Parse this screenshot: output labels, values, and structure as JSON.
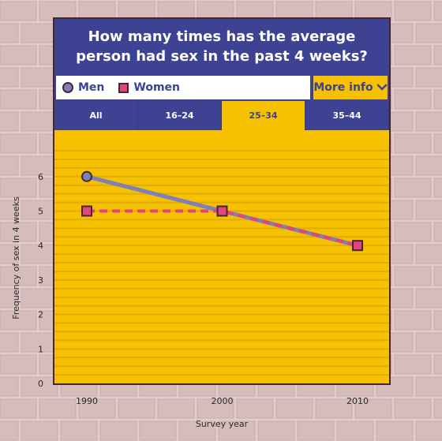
{
  "title": "How many times has the average person had sex in the past 4 weeks?",
  "legend": {
    "men": "Men",
    "women": "Women"
  },
  "more_info_label": "More info",
  "tabs": [
    {
      "label": "All",
      "active": false
    },
    {
      "label": "16–24",
      "active": false
    },
    {
      "label": "25–34",
      "active": true
    },
    {
      "label": "35–44",
      "active": false
    }
  ],
  "colors": {
    "panel": "#f6c100",
    "header": "#3d4293",
    "men": "#7e80b8",
    "women": "#e0457b",
    "outline": "#4a2430",
    "gridline": "#e1ac00"
  },
  "chart_data": {
    "type": "line",
    "title": "How many times has the average person had sex in the past 4 weeks?",
    "xlabel": "Survey year",
    "ylabel": "Frequency of sex in 4 weeks",
    "x": [
      1990,
      2000,
      2010
    ],
    "x_tick_labels": [
      "1990",
      "2000",
      "2010"
    ],
    "y_ticks": [
      0,
      1,
      2,
      3,
      4,
      5,
      6
    ],
    "ylim": [
      0,
      6
    ],
    "series": [
      {
        "name": "Men",
        "values": [
          6,
          5,
          4
        ],
        "marker": "circle",
        "style": "solid"
      },
      {
        "name": "Women",
        "values": [
          5,
          5,
          4
        ],
        "marker": "square",
        "style": "dashed"
      }
    ],
    "grid": true,
    "legend": "top"
  }
}
